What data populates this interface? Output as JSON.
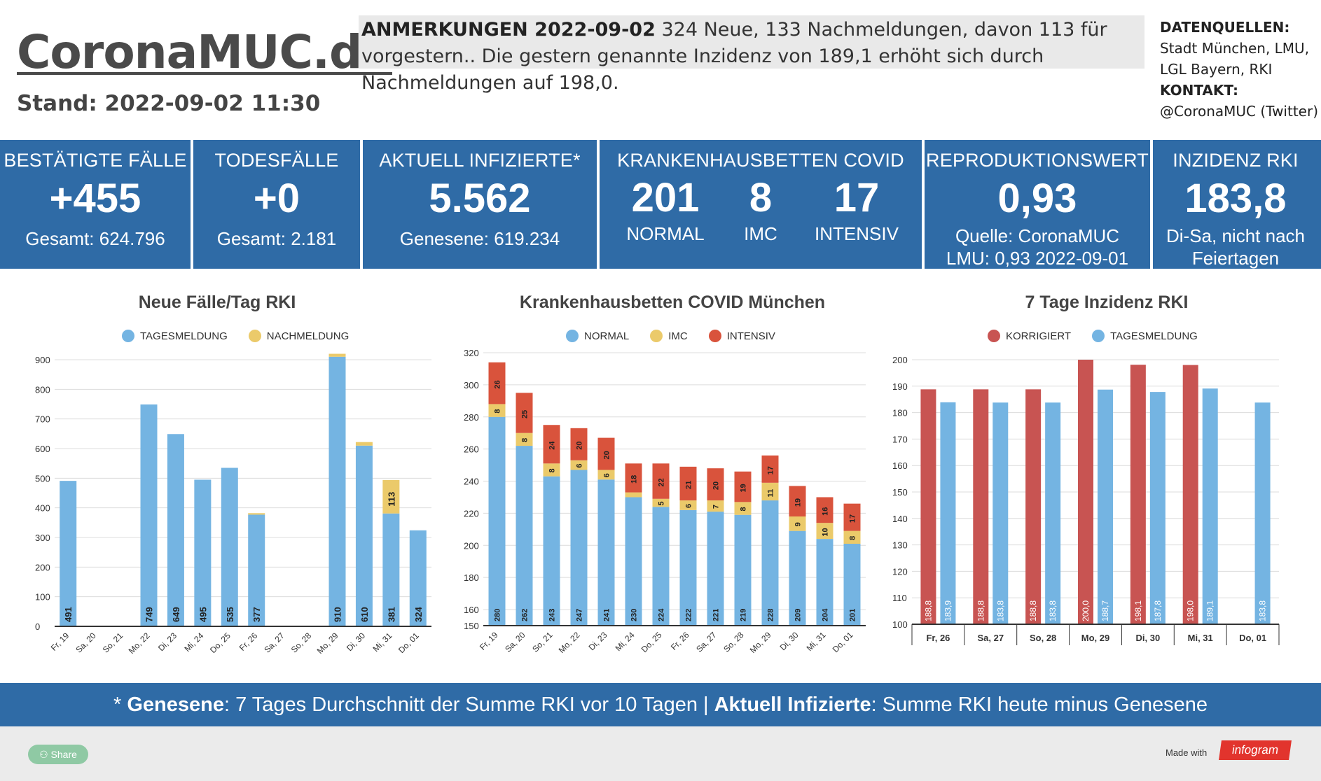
{
  "header": {
    "logo": "CoronaMUC.de",
    "stand": "Stand: 2022-09-02 11:30",
    "notes_title": "ANMERKUNGEN 2022-09-02",
    "notes_text": " 324 Neue, 133 Nachmeldungen, davon 113 für vorgestern.. Die gestern genannte Inzidenz von 189,1 erhöht sich durch Nachmeldungen auf 198,0.",
    "sources_label": "DATENQUELLEN:",
    "sources_line1": "Stadt München, LMU,",
    "sources_line2": "LGL Bayern, RKI",
    "contact_label": "KONTAKT:",
    "contact_value": "@CoronaMUC (Twitter)"
  },
  "kpis": {
    "cases": {
      "label": "BESTÄTIGTE FÄLLE",
      "value": "+455",
      "sub": "Gesamt: 624.796"
    },
    "deaths": {
      "label": "TODESFÄLLE",
      "value": "+0",
      "sub": "Gesamt: 2.181"
    },
    "infected": {
      "label": "AKTUELL INFIZIERTE*",
      "value": "5.562",
      "sub": "Genesene: 619.234"
    },
    "beds": {
      "label": "KRANKENHAUSBETTEN COVID",
      "normal_value": "201",
      "normal_label": "NORMAL",
      "imc_value": "8",
      "imc_label": "IMC",
      "icu_value": "17",
      "icu_label": "INTENSIV"
    },
    "r": {
      "label": "REPRODUKTIONSWERT",
      "value": "0,93",
      "sub1": "Quelle: CoronaMUC",
      "sub2": "LMU: 0,93 2022-09-01"
    },
    "incidence": {
      "label": "INZIDENZ RKI",
      "value": "183,8",
      "sub1": "Di-Sa, nicht nach",
      "sub2": "Feiertagen"
    }
  },
  "footer": {
    "text_part1": "* ",
    "bold1": "Genesene",
    "text_part2": ":  7 Tages Durchschnitt der Summe RKI vor 10 Tagen | ",
    "bold2": "Aktuell Infizierte",
    "text_part3": ": Summe RKI heute minus Genesene"
  },
  "bottom": {
    "share": "Share",
    "made_with": "Made with",
    "brand": "infogram"
  },
  "colors": {
    "blue": "#2f6ba6",
    "bar_blue": "#74b4e2",
    "bar_yellow": "#ebca6a",
    "bar_red": "#d9533c",
    "bar_darkred": "#c85452"
  },
  "chart_data": [
    {
      "type": "bar",
      "title": "Neue Fälle/Tag RKI",
      "legend": [
        "TAGESMELDUNG",
        "NACHMELDUNG"
      ],
      "categories": [
        "Fr, 19",
        "Sa, 20",
        "So, 21",
        "Mo, 22",
        "Di, 23",
        "Mi, 24",
        "Do, 25",
        "Fr, 26",
        "Sa, 27",
        "So, 28",
        "Mo, 29",
        "Di, 30",
        "Mi, 31",
        "Do, 01"
      ],
      "series": [
        {
          "name": "TAGESMELDUNG",
          "values": [
            491,
            0,
            0,
            749,
            649,
            495,
            535,
            377,
            0,
            0,
            910,
            610,
            381,
            324
          ],
          "labels": [
            "491",
            "",
            "",
            "749",
            "649",
            "495",
            "535",
            "377",
            "",
            "",
            "910",
            "610",
            "381",
            "324"
          ]
        },
        {
          "name": "NACHMELDUNG",
          "values": [
            0,
            0,
            0,
            0,
            0,
            0,
            0,
            5,
            0,
            0,
            10,
            12,
            113,
            0
          ],
          "labels": [
            "",
            "",
            "",
            "",
            "",
            "",
            "",
            "",
            "",
            "",
            "",
            "",
            "113",
            ""
          ]
        }
      ],
      "ylim": [
        0,
        900
      ],
      "yticks": [
        "0",
        "100",
        "200",
        "300",
        "400",
        "500",
        "600",
        "700",
        "800",
        "900"
      ]
    },
    {
      "type": "bar",
      "title": "Krankenhausbetten COVID München",
      "legend": [
        "NORMAL",
        "IMC",
        "INTENSIV"
      ],
      "categories": [
        "Fr, 19",
        "Sa, 20",
        "So, 21",
        "Mo, 22",
        "Di, 23",
        "Mi, 24",
        "Do, 25",
        "Fr, 26",
        "Sa, 27",
        "So, 28",
        "Mo, 29",
        "Di, 30",
        "Mi, 31",
        "Do, 01"
      ],
      "series": [
        {
          "name": "NORMAL",
          "values": [
            280,
            262,
            243,
            247,
            241,
            230,
            224,
            222,
            221,
            219,
            228,
            209,
            204,
            201
          ],
          "labels": [
            "280",
            "262",
            "243",
            "247",
            "241",
            "230",
            "224",
            "222",
            "221",
            "219",
            "228",
            "209",
            "204",
            "201"
          ]
        },
        {
          "name": "IMC",
          "values": [
            8,
            8,
            8,
            6,
            6,
            3,
            5,
            6,
            7,
            8,
            11,
            9,
            10,
            8
          ],
          "labels": [
            "8",
            "8",
            "8",
            "6",
            "6",
            "",
            "5",
            "6",
            "7",
            "8",
            "11",
            "9",
            "10",
            "8"
          ]
        },
        {
          "name": "INTENSIV",
          "values": [
            26,
            25,
            24,
            20,
            20,
            18,
            22,
            21,
            20,
            19,
            17,
            19,
            16,
            17
          ],
          "labels": [
            "26",
            "25",
            "24",
            "20",
            "20",
            "18",
            "22",
            "21",
            "20",
            "19",
            "17",
            "19",
            "16",
            "17"
          ]
        }
      ],
      "ylim": [
        150,
        320
      ],
      "yticks": [
        "150",
        "160",
        "180",
        "200",
        "220",
        "240",
        "260",
        "280",
        "300",
        "320"
      ]
    },
    {
      "type": "bar",
      "title": "7 Tage Inzidenz RKI",
      "legend": [
        "KORRIGIERT",
        "TAGESMELDUNG"
      ],
      "categories": [
        "Fr, 26",
        "Sa, 27",
        "So, 28",
        "Mo, 29",
        "Di, 30",
        "Mi, 31",
        "Do, 01"
      ],
      "series": [
        {
          "name": "KORRIGIERT",
          "values": [
            188.8,
            188.8,
            188.8,
            200.0,
            198.1,
            198.0,
            null
          ],
          "labels": [
            "188,8",
            "188,8",
            "188,8",
            "200,0",
            "198,1",
            "198,0",
            ""
          ]
        },
        {
          "name": "TAGESMELDUNG",
          "values": [
            183.9,
            183.8,
            183.8,
            188.7,
            187.8,
            189.1,
            183.8
          ],
          "labels": [
            "183,9",
            "183,8",
            "183,8",
            "188,7",
            "187,8",
            "189,1",
            "183,8"
          ]
        }
      ],
      "ylim": [
        100,
        200
      ],
      "yticks": [
        "100",
        "110",
        "120",
        "130",
        "140",
        "150",
        "160",
        "170",
        "180",
        "190",
        "200"
      ]
    }
  ]
}
